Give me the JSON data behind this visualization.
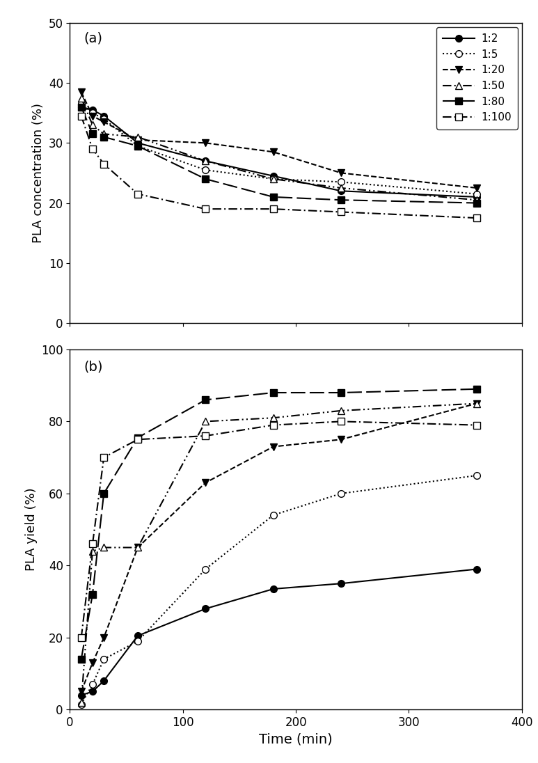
{
  "time_points": [
    10,
    20,
    30,
    60,
    120,
    180,
    240,
    360
  ],
  "conc_1_2": [
    36.0,
    35.5,
    34.5,
    30.0,
    27.0,
    24.5,
    22.0,
    21.0
  ],
  "conc_1_5": [
    36.5,
    35.0,
    34.0,
    29.5,
    25.5,
    24.0,
    23.5,
    21.5
  ],
  "conc_1_20": [
    38.5,
    34.5,
    33.5,
    30.5,
    30.0,
    28.5,
    25.0,
    22.5
  ],
  "conc_1_50": [
    37.5,
    33.0,
    31.5,
    31.0,
    27.0,
    24.0,
    22.5,
    20.5
  ],
  "conc_1_80": [
    36.0,
    31.5,
    31.0,
    29.5,
    24.0,
    21.0,
    20.5,
    20.0
  ],
  "conc_1_100": [
    34.5,
    29.0,
    26.5,
    21.5,
    19.0,
    19.0,
    18.5,
    17.5
  ],
  "yield_1_2": [
    4.0,
    5.0,
    8.0,
    20.5,
    28.0,
    33.5,
    35.0,
    39.0
  ],
  "yield_1_5": [
    1.5,
    7.0,
    14.0,
    19.0,
    39.0,
    54.0,
    60.0,
    65.0
  ],
  "yield_1_20": [
    5.0,
    13.0,
    20.0,
    45.0,
    63.0,
    73.0,
    75.0,
    85.0
  ],
  "yield_1_50": [
    2.0,
    44.0,
    45.0,
    45.0,
    80.0,
    81.0,
    83.0,
    85.0
  ],
  "yield_1_80": [
    14.0,
    32.0,
    60.0,
    75.5,
    86.0,
    88.0,
    88.0,
    89.0
  ],
  "yield_1_100": [
    20.0,
    46.0,
    70.0,
    75.0,
    76.0,
    79.0,
    80.0,
    79.0
  ],
  "ylabel_a": "PLA concentration (%)",
  "ylabel_b": "PLA yield (%)",
  "xlabel": "Time (min)",
  "label_a": "(a)",
  "label_b": "(b)",
  "ylim_a": [
    0,
    50
  ],
  "yticks_a": [
    0,
    10,
    20,
    30,
    40,
    50
  ],
  "ylim_b": [
    0,
    100
  ],
  "yticks_b": [
    0,
    20,
    40,
    60,
    80,
    100
  ],
  "xlim": [
    0,
    400
  ],
  "xticks": [
    0,
    100,
    200,
    300,
    400
  ],
  "legend_labels": [
    "1:2",
    "1:5",
    "1:20",
    "1:50",
    "1:80",
    "1:100"
  ],
  "color": "black",
  "lw": 1.5,
  "ms": 7
}
